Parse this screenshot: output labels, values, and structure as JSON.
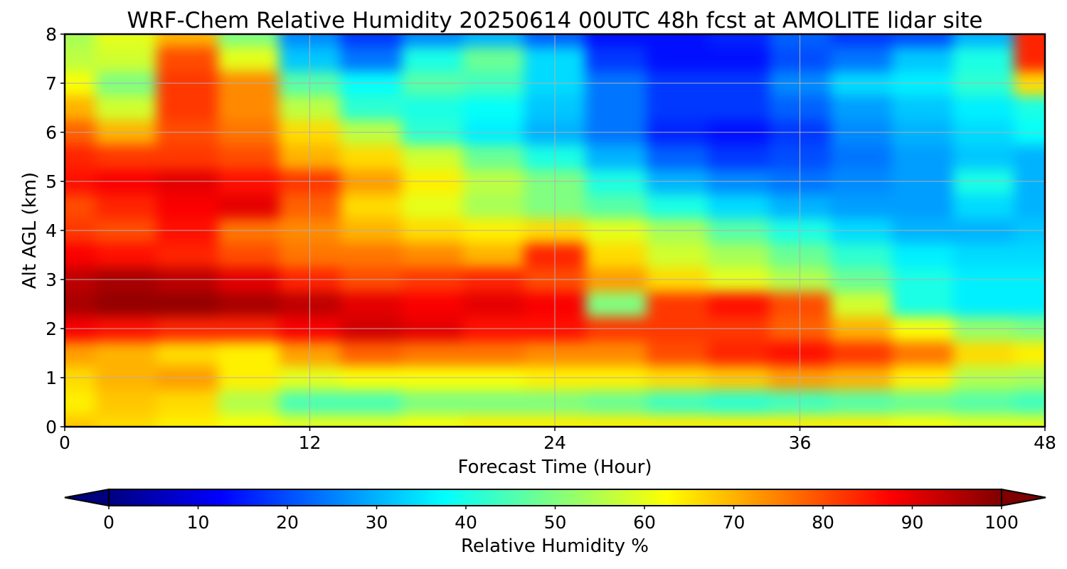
{
  "chart_data": {
    "type": "heatmap",
    "title": "WRF-Chem Relative Humidity 20250614 00UTC 48h fcst at AMOLITE lidar site",
    "xlabel": "Forecast Time (Hour)",
    "ylabel": "Alt AGL (km)",
    "x_ticks": [
      "0",
      "12",
      "24",
      "36",
      "48"
    ],
    "y_ticks": [
      "0",
      "1",
      "2",
      "3",
      "4",
      "5",
      "6",
      "7",
      "8"
    ],
    "xlim": [
      0,
      48
    ],
    "ylim": [
      0,
      8
    ],
    "grid": true,
    "colormap": "jet",
    "colorbar": {
      "label": "Relative Humidity %",
      "range": [
        0,
        100
      ],
      "ticks": [
        "0",
        "10",
        "20",
        "30",
        "40",
        "50",
        "60",
        "70",
        "80",
        "90",
        "100"
      ],
      "extend": "both"
    },
    "x": [
      0,
      3,
      6,
      9,
      12,
      15,
      18,
      21,
      24,
      27,
      30,
      33,
      36,
      39,
      42,
      45,
      48
    ],
    "y": [
      0,
      0.5,
      1,
      1.5,
      2,
      2.5,
      3,
      3.5,
      4,
      4.5,
      5,
      5.5,
      6,
      6.5,
      7,
      7.5,
      8
    ],
    "values": [
      [
        68,
        66,
        64,
        62,
        60,
        60,
        62,
        64,
        64,
        64,
        64,
        64,
        64,
        64,
        62,
        60,
        60
      ],
      [
        64,
        68,
        66,
        55,
        45,
        45,
        50,
        50,
        50,
        48,
        44,
        42,
        44,
        46,
        48,
        46,
        44
      ],
      [
        66,
        70,
        72,
        64,
        60,
        62,
        62,
        62,
        64,
        64,
        66,
        68,
        72,
        70,
        64,
        55,
        54
      ],
      [
        72,
        70,
        66,
        64,
        72,
        78,
        76,
        76,
        74,
        74,
        80,
        84,
        86,
        82,
        76,
        66,
        64
      ],
      [
        88,
        86,
        84,
        84,
        88,
        92,
        90,
        86,
        86,
        82,
        82,
        82,
        78,
        70,
        62,
        52,
        50
      ],
      [
        96,
        98,
        98,
        96,
        94,
        90,
        88,
        90,
        88,
        50,
        82,
        86,
        80,
        58,
        40,
        36,
        36
      ],
      [
        94,
        96,
        94,
        90,
        84,
        80,
        82,
        84,
        80,
        72,
        66,
        60,
        55,
        48,
        40,
        36,
        36
      ],
      [
        88,
        86,
        84,
        80,
        76,
        76,
        74,
        70,
        84,
        66,
        58,
        54,
        48,
        42,
        36,
        34,
        34
      ],
      [
        82,
        80,
        86,
        76,
        74,
        70,
        66,
        64,
        66,
        60,
        54,
        46,
        40,
        34,
        30,
        30,
        32
      ],
      [
        80,
        84,
        88,
        90,
        78,
        66,
        60,
        54,
        50,
        46,
        40,
        34,
        30,
        28,
        28,
        34,
        30
      ],
      [
        86,
        88,
        90,
        86,
        82,
        72,
        64,
        56,
        50,
        40,
        30,
        26,
        24,
        26,
        28,
        40,
        30
      ],
      [
        84,
        82,
        82,
        80,
        70,
        66,
        58,
        48,
        40,
        30,
        22,
        18,
        20,
        24,
        28,
        32,
        30
      ],
      [
        78,
        70,
        80,
        76,
        66,
        56,
        42,
        36,
        30,
        24,
        16,
        14,
        18,
        26,
        30,
        34,
        38
      ],
      [
        70,
        58,
        82,
        74,
        56,
        42,
        40,
        38,
        32,
        24,
        18,
        18,
        22,
        28,
        32,
        36,
        40
      ],
      [
        62,
        50,
        82,
        74,
        46,
        38,
        46,
        44,
        34,
        24,
        18,
        18,
        26,
        34,
        36,
        42,
        66
      ],
      [
        56,
        58,
        80,
        60,
        32,
        24,
        40,
        48,
        34,
        18,
        14,
        14,
        20,
        24,
        32,
        40,
        84
      ],
      [
        54,
        60,
        70,
        50,
        26,
        18,
        26,
        30,
        22,
        14,
        14,
        16,
        22,
        18,
        20,
        30,
        84
      ]
    ]
  }
}
